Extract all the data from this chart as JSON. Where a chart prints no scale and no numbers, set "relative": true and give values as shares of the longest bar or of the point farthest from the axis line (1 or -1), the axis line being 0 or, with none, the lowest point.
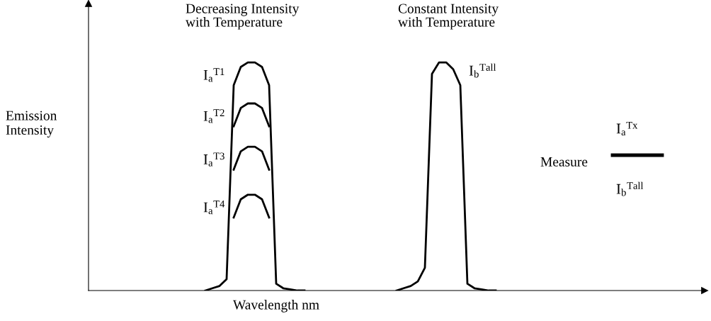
{
  "chart_data": {
    "type": "line",
    "relative": true,
    "xlabel": "Wavelength nm",
    "ylabel": "Emission\nIntensity",
    "categories": [
      null,
      null,
      null,
      null,
      null,
      null,
      null,
      null,
      null,
      null,
      null,
      null,
      null,
      null,
      null,
      null,
      null,
      null,
      null,
      null,
      null,
      null,
      null,
      null,
      null,
      null,
      null,
      null,
      null,
      null,
      null,
      null,
      null,
      null,
      null,
      null,
      null,
      null,
      null,
      null,
      null,
      null,
      null,
      null,
      null,
      null,
      null,
      null,
      null,
      null,
      null,
      null,
      null,
      null,
      null,
      null,
      null,
      null,
      null,
      null,
      null,
      null,
      null,
      null,
      null,
      null,
      null,
      null,
      null,
      null,
      null,
      null,
      null,
      null,
      null,
      null,
      null,
      null,
      null,
      null,
      null,
      null,
      null,
      null,
      null,
      null,
      null
    ],
    "series": [
      {
        "name": "I$_{a}$$^{T1}$",
        "color": "#000000",
        "values": [
          null,
          null,
          null,
          null,
          null,
          null,
          null,
          null,
          null,
          null,
          null,
          null,
          null,
          null,
          null,
          null,
          0,
          0.01,
          0.02,
          0.05,
          0.9,
          0.98,
          1,
          1,
          0.98,
          0.9,
          0.03,
          0.01,
          0.005,
          0,
          0,
          null,
          null,
          null,
          null,
          null,
          null,
          null,
          null,
          null,
          null,
          null,
          null,
          null,
          null,
          null,
          null,
          null,
          null,
          null,
          null,
          null,
          null,
          null,
          null,
          null,
          null,
          null,
          null,
          null,
          null,
          null,
          null,
          null,
          null,
          null,
          null,
          null,
          null,
          null,
          null,
          null,
          null,
          null,
          null,
          null,
          null,
          null,
          null,
          null,
          null,
          null,
          null,
          null,
          null,
          null,
          null
        ]
      },
      {
        "name": "I$_{a}$$^{T2}$",
        "color": "#000000",
        "values": [
          null,
          null,
          null,
          null,
          null,
          null,
          null,
          null,
          null,
          null,
          null,
          null,
          null,
          null,
          null,
          null,
          null,
          null,
          null,
          null,
          0.72,
          0.8,
          0.82,
          0.82,
          0.8,
          0.72,
          null,
          null,
          null,
          null,
          null,
          null,
          null,
          null,
          null,
          null,
          null,
          null,
          null,
          null,
          null,
          null,
          null,
          null,
          null,
          null,
          null,
          null,
          null,
          null,
          null,
          null,
          null,
          null,
          null,
          null,
          null,
          null,
          null,
          null,
          null,
          null,
          null,
          null,
          null,
          null,
          null,
          null,
          null,
          null,
          null,
          null,
          null,
          null,
          null,
          null,
          null,
          null,
          null,
          null,
          null,
          null,
          null,
          null,
          null,
          null,
          null
        ]
      },
      {
        "name": "I$_{a}$$^{T3}$",
        "color": "#000000",
        "values": [
          null,
          null,
          null,
          null,
          null,
          null,
          null,
          null,
          null,
          null,
          null,
          null,
          null,
          null,
          null,
          null,
          null,
          null,
          null,
          null,
          0.53,
          0.61,
          0.63,
          0.63,
          0.61,
          0.53,
          null,
          null,
          null,
          null,
          null,
          null,
          null,
          null,
          null,
          null,
          null,
          null,
          null,
          null,
          null,
          null,
          null,
          null,
          null,
          null,
          null,
          null,
          null,
          null,
          null,
          null,
          null,
          null,
          null,
          null,
          null,
          null,
          null,
          null,
          null,
          null,
          null,
          null,
          null,
          null,
          null,
          null,
          null,
          null,
          null,
          null,
          null,
          null,
          null,
          null,
          null,
          null,
          null,
          null,
          null,
          null,
          null,
          null,
          null,
          null,
          null
        ]
      },
      {
        "name": "I$_{a}$$^{T4}$",
        "color": "#000000",
        "values": [
          null,
          null,
          null,
          null,
          null,
          null,
          null,
          null,
          null,
          null,
          null,
          null,
          null,
          null,
          null,
          null,
          null,
          null,
          null,
          null,
          0.32,
          0.4,
          0.42,
          0.42,
          0.4,
          0.32,
          null,
          null,
          null,
          null,
          null,
          null,
          null,
          null,
          null,
          null,
          null,
          null,
          null,
          null,
          null,
          null,
          null,
          null,
          null,
          null,
          null,
          null,
          null,
          null,
          null,
          null,
          null,
          null,
          null,
          null,
          null,
          null,
          null,
          null,
          null,
          null,
          null,
          null,
          null,
          null,
          null,
          null,
          null,
          null,
          null,
          null,
          null,
          null,
          null,
          null,
          null,
          null,
          null,
          null,
          null,
          null,
          null,
          null,
          null,
          null,
          null
        ]
      },
      {
        "name": "I$_{b}$$^{Tall}$",
        "color": "#000000",
        "values": [
          null,
          null,
          null,
          null,
          null,
          null,
          null,
          null,
          null,
          null,
          null,
          null,
          null,
          null,
          null,
          null,
          null,
          null,
          null,
          null,
          null,
          null,
          null,
          null,
          null,
          null,
          null,
          null,
          null,
          null,
          null,
          null,
          null,
          null,
          null,
          null,
          null,
          null,
          null,
          null,
          null,
          null,
          null,
          0,
          0.01,
          0.02,
          0.04,
          0.1,
          0.95,
          1,
          1,
          0.97,
          0.9,
          0.03,
          0.01,
          0.005,
          0,
          0,
          null,
          null,
          null,
          null,
          null,
          null,
          null,
          null,
          null,
          null,
          null,
          null,
          null,
          null,
          null,
          null,
          null,
          null,
          null,
          null,
          null,
          null,
          null,
          null,
          null,
          null,
          null,
          null,
          null
        ]
      }
    ],
    "annotations": [
      "Decreasing Intensity\nwith Temperature",
      "Constant Intensity\nwith Temperature",
      "Measure",
      "I$_{a}$$^{Tx}$",
      "I$_{b}$$^{Tall}$"
    ],
    "grid": false,
    "legend": false
  }
}
